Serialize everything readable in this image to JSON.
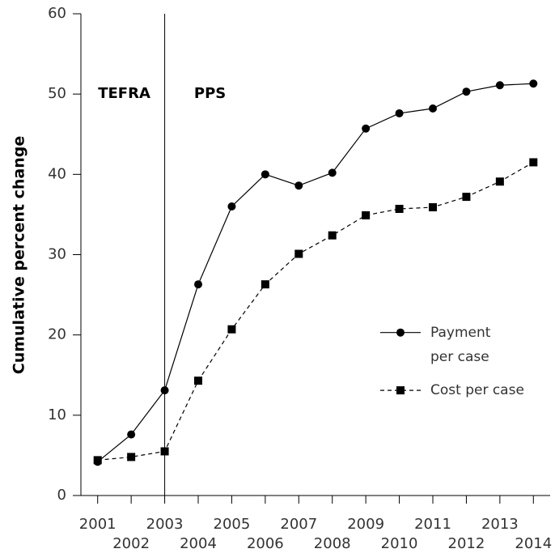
{
  "chart_data": {
    "type": "line",
    "ylabel": "Cumulative percent change",
    "annotations": [
      "TEFRA",
      "PPS"
    ],
    "vline": 2003,
    "x": [
      2001,
      2002,
      2003,
      2004,
      2005,
      2006,
      2007,
      2008,
      2009,
      2010,
      2011,
      2012,
      2013,
      2014
    ],
    "series": [
      {
        "name": "Payment per case",
        "color": "#000000",
        "marker": "circle",
        "dashed": false,
        "values": [
          4.2,
          7.6,
          13.1,
          26.3,
          36.0,
          40.0,
          38.6,
          40.2,
          45.7,
          47.6,
          48.2,
          50.3,
          51.1,
          51.3
        ]
      },
      {
        "name": "Cost per case",
        "color": "#000000",
        "marker": "square",
        "dashed": true,
        "values": [
          4.4,
          4.8,
          5.5,
          14.3,
          20.7,
          26.3,
          30.1,
          32.4,
          34.9,
          35.7,
          35.9,
          37.2,
          39.1,
          41.5
        ]
      }
    ],
    "xlim": [
      2000.5,
      2014.5
    ],
    "xticks": [
      2001,
      2002,
      2003,
      2004,
      2005,
      2006,
      2007,
      2008,
      2009,
      2010,
      2011,
      2012,
      2013,
      2014
    ],
    "ylim": [
      0,
      60
    ],
    "yticks": [
      0,
      10,
      20,
      30,
      40,
      50,
      60
    ],
    "grid": false,
    "legend": "right"
  }
}
